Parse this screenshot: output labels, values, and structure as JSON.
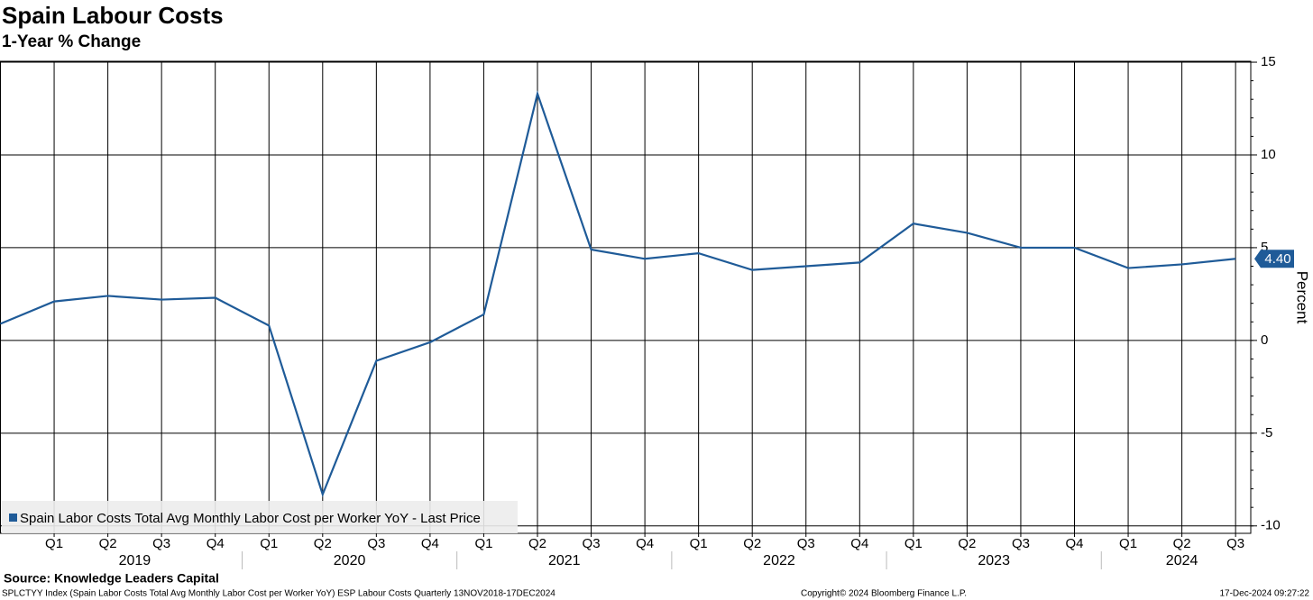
{
  "chart_data": {
    "type": "line",
    "title": "Spain Labour Costs",
    "subtitle": "1-Year % Change",
    "categories": [
      null,
      "Q1",
      "Q2",
      "Q3",
      "Q4",
      "Q1",
      "Q2",
      "Q3",
      "Q4",
      "Q1",
      "Q2",
      "Q3",
      "Q4",
      "Q1",
      "Q2",
      "Q3",
      "Q4",
      "Q1",
      "Q2",
      "Q3",
      "Q4",
      "Q1",
      "Q2",
      "Q3"
    ],
    "category_groups": [
      "2019",
      "2020",
      "2021",
      "2022",
      "2023",
      "2024"
    ],
    "series": [
      {
        "name": "Spain Labor Costs Total Avg Monthly Labor Cost per Worker YoY - Last Price",
        "color": "#1f5b98",
        "values": [
          0.9,
          2.1,
          2.4,
          2.2,
          2.3,
          0.8,
          -8.3,
          -1.1,
          -0.1,
          1.4,
          13.3,
          4.9,
          4.4,
          4.7,
          3.8,
          4.0,
          4.2,
          6.3,
          5.8,
          5.0,
          5.0,
          3.9,
          4.1,
          4.4
        ],
        "value_labels": [
          null,
          null,
          null,
          null,
          null,
          null,
          null,
          null,
          null,
          null,
          null,
          null,
          null,
          null,
          null,
          null,
          null,
          null,
          null,
          null,
          null,
          null,
          null,
          "4.40"
        ]
      }
    ],
    "ylim": [
      -10.4,
      15.05
    ],
    "yticks": [
      -10,
      -5,
      0,
      5,
      10,
      15
    ],
    "y_label": "Percent",
    "grid": true,
    "source": "Source: Knowledge Leaders Capital",
    "footer_left": "SPLCTYY Index (Spain Labor Costs Total Avg Monthly Labor Cost per Worker YoY) ESP Labour Costs  Quarterly 13NOV2018-17DEC2024",
    "footer_center": "Copyright© 2024 Bloomberg Finance L.P.",
    "footer_right": "17-Dec-2024 09:27:22"
  }
}
